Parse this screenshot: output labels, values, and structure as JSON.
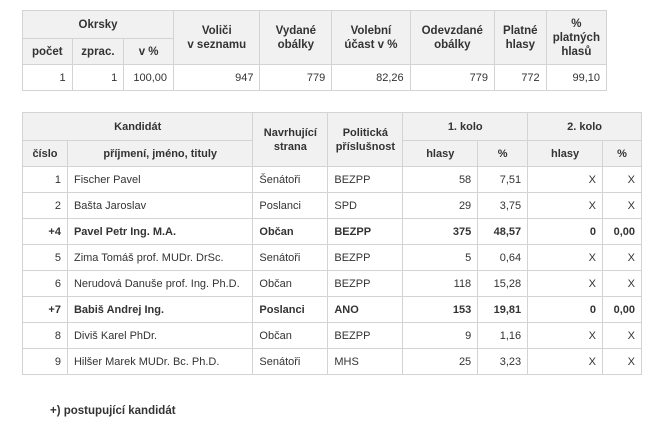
{
  "summary": {
    "group_header": "Okrsky",
    "sub_headers": [
      "počet",
      "zprac.",
      "v %"
    ],
    "headers": [
      "Voliči\nv seznamu",
      "Vydané\nobálky",
      "Volební\núčast v %",
      "Odevzdané\nobálky",
      "Platné\nhlasy",
      "% platných\nhlasů"
    ],
    "row": [
      "1",
      "1",
      "100,00",
      "947",
      "779",
      "82,26",
      "779",
      "772",
      "99,10"
    ]
  },
  "candidates": {
    "header_kandidat": "Kandidát",
    "header_strana": "Navrhující\nstrana",
    "header_prislusnost": "Politická\npříslušnost",
    "header_kolo1": "1. kolo",
    "header_kolo2": "2. kolo",
    "sub_cislo": "číslo",
    "sub_jmeno": "příjmení, jméno, tituly",
    "sub_hlasy1": "hlasy",
    "sub_pct1": "%",
    "sub_hlasy2": "hlasy",
    "sub_pct2": "%",
    "rows": [
      {
        "cislo": "1",
        "jmeno": "Fischer Pavel",
        "strana": "Šenátoři",
        "prislusnost": "BEZPP",
        "hlasy1": "58",
        "pct1": "7,51",
        "hlasy2": "X",
        "pct2": "X",
        "advancing": false
      },
      {
        "cislo": "2",
        "jmeno": "Bašta Jaroslav",
        "strana": "Poslanci",
        "prislusnost": "SPD",
        "hlasy1": "29",
        "pct1": "3,75",
        "hlasy2": "X",
        "pct2": "X",
        "advancing": false
      },
      {
        "cislo": "+4",
        "jmeno": "Pavel Petr Ing. M.A.",
        "strana": "Občan",
        "prislusnost": "BEZPP",
        "hlasy1": "375",
        "pct1": "48,57",
        "hlasy2": "0",
        "pct2": "0,00",
        "advancing": true
      },
      {
        "cislo": "5",
        "jmeno": "Zima Tomáš prof. MUDr. DrSc.",
        "strana": "Senátoři",
        "prislusnost": "BEZPP",
        "hlasy1": "5",
        "pct1": "0,64",
        "hlasy2": "X",
        "pct2": "X",
        "advancing": false
      },
      {
        "cislo": "6",
        "jmeno": "Nerudová Danuše prof. Ing. Ph.D.",
        "strana": "Občan",
        "prislusnost": "BEZPP",
        "hlasy1": "118",
        "pct1": "15,28",
        "hlasy2": "X",
        "pct2": "X",
        "advancing": false
      },
      {
        "cislo": "+7",
        "jmeno": "Babiš Andrej Ing.",
        "strana": "Poslanci",
        "prislusnost": "ANO",
        "hlasy1": "153",
        "pct1": "19,81",
        "hlasy2": "0",
        "pct2": "0,00",
        "advancing": true
      },
      {
        "cislo": "8",
        "jmeno": "Diviš Karel PhDr.",
        "strana": "Občan",
        "prislusnost": "BEZPP",
        "hlasy1": "9",
        "pct1": "1,16",
        "hlasy2": "X",
        "pct2": "X",
        "advancing": false
      },
      {
        "cislo": "9",
        "jmeno": "Hilšer Marek MUDr. Bc. Ph.D.",
        "strana": "Senátoři",
        "prislusnost": "MHS",
        "hlasy1": "25",
        "pct1": "3,23",
        "hlasy2": "X",
        "pct2": "X",
        "advancing": false
      }
    ]
  },
  "footnote": "+) postupující kandidát"
}
